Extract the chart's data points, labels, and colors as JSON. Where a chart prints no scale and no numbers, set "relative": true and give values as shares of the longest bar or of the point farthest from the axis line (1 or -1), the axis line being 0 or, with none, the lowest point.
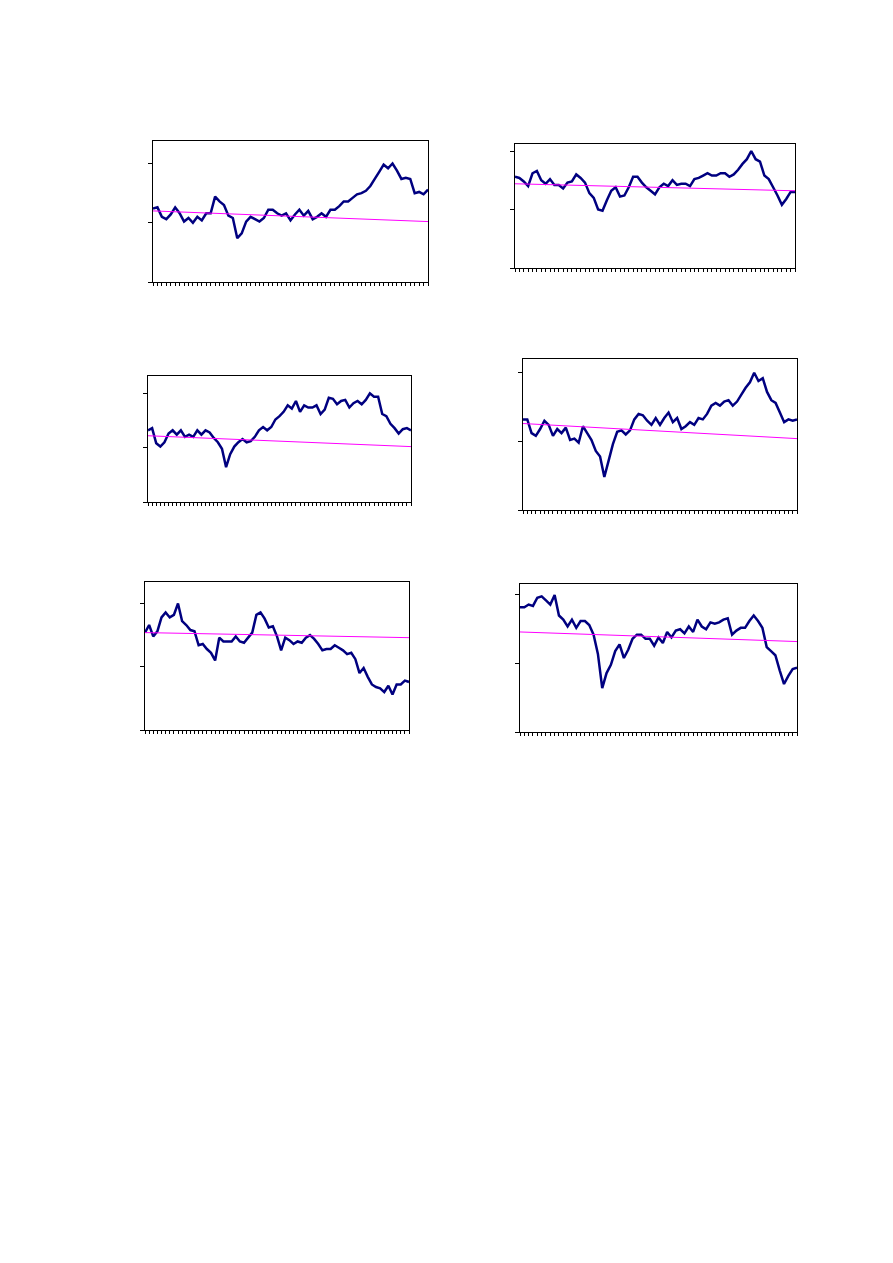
{
  "chart_data": [
    {
      "type": "line",
      "relative": true,
      "categories": [
        null,
        null,
        null,
        null,
        null,
        null,
        null,
        null,
        null,
        null,
        null,
        null,
        null,
        null,
        null,
        null,
        null,
        null,
        null,
        null,
        null,
        null,
        null,
        null,
        null,
        null,
        null,
        null,
        null,
        null,
        null,
        null,
        null,
        null,
        null,
        null,
        null,
        null,
        null,
        null,
        null,
        null,
        null,
        null,
        null,
        null,
        null,
        null,
        null,
        null,
        null,
        null,
        null,
        null,
        null,
        null,
        null,
        null,
        null,
        null,
        null,
        null,
        null
      ],
      "series": [
        {
          "color": "#000080",
          "values": [
            0.62,
            0.63,
            0.55,
            0.53,
            0.57,
            0.63,
            0.58,
            0.51,
            0.54,
            0.5,
            0.55,
            0.52,
            0.58,
            0.58,
            0.72,
            0.68,
            0.65,
            0.56,
            0.54,
            0.37,
            0.41,
            0.51,
            0.55,
            0.53,
            0.51,
            0.54,
            0.61,
            0.61,
            0.58,
            0.56,
            0.58,
            0.52,
            0.57,
            0.61,
            0.56,
            0.6,
            0.53,
            0.55,
            0.58,
            0.55,
            0.61,
            0.61,
            0.64,
            0.68,
            0.68,
            0.71,
            0.74,
            0.75,
            0.77,
            0.81,
            0.87,
            0.93,
            0.99,
            0.96,
            1.0,
            0.94,
            0.87,
            0.88,
            0.87,
            0.75,
            0.76,
            0.74,
            0.78
          ]
        },
        {
          "type": "line",
          "color": "#ff00ff",
          "values": [
            0.6,
            null,
            null,
            null,
            null,
            null,
            null,
            null,
            null,
            null,
            null,
            null,
            null,
            null,
            null,
            null,
            null,
            null,
            null,
            null,
            null,
            null,
            null,
            null,
            null,
            null,
            null,
            null,
            null,
            null,
            null,
            null,
            null,
            null,
            null,
            null,
            null,
            null,
            null,
            null,
            null,
            null,
            null,
            null,
            null,
            null,
            null,
            null,
            null,
            null,
            null,
            null,
            null,
            null,
            null,
            null,
            null,
            null,
            null,
            null,
            null,
            null,
            0.51
          ]
        }
      ]
    },
    {
      "type": "line",
      "relative": true,
      "categories": [
        null,
        null,
        null,
        null,
        null,
        null,
        null,
        null,
        null,
        null,
        null,
        null,
        null,
        null,
        null,
        null,
        null,
        null,
        null,
        null,
        null,
        null,
        null,
        null,
        null,
        null,
        null,
        null,
        null,
        null,
        null,
        null,
        null,
        null,
        null,
        null,
        null,
        null,
        null,
        null,
        null,
        null,
        null,
        null,
        null,
        null,
        null,
        null,
        null,
        null,
        null,
        null,
        null,
        null,
        null,
        null,
        null,
        null,
        null,
        null,
        null,
        null,
        null,
        null,
        null
      ],
      "series": [
        {
          "color": "#000080",
          "values": [
            0.78,
            0.77,
            0.74,
            0.7,
            0.81,
            0.83,
            0.75,
            0.72,
            0.76,
            0.71,
            0.71,
            0.68,
            0.73,
            0.74,
            0.8,
            0.77,
            0.73,
            0.64,
            0.6,
            0.5,
            0.49,
            0.58,
            0.66,
            0.69,
            0.61,
            0.62,
            0.69,
            0.78,
            0.78,
            0.73,
            0.69,
            0.66,
            0.63,
            0.69,
            0.72,
            0.7,
            0.75,
            0.71,
            0.72,
            0.72,
            0.7,
            0.76,
            0.77,
            0.79,
            0.81,
            0.79,
            0.79,
            0.81,
            0.81,
            0.78,
            0.8,
            0.84,
            0.89,
            0.93,
            1.0,
            0.93,
            0.91,
            0.79,
            0.76,
            0.69,
            0.62,
            0.54,
            0.59,
            0.65,
            0.65
          ]
        },
        {
          "type": "line",
          "color": "#ff00ff",
          "values": [
            0.72,
            null,
            null,
            null,
            null,
            null,
            null,
            null,
            null,
            null,
            null,
            null,
            null,
            null,
            null,
            null,
            null,
            null,
            null,
            null,
            null,
            null,
            null,
            null,
            null,
            null,
            null,
            null,
            null,
            null,
            null,
            null,
            null,
            null,
            null,
            null,
            null,
            null,
            null,
            null,
            null,
            null,
            null,
            null,
            null,
            null,
            null,
            null,
            null,
            null,
            null,
            null,
            null,
            null,
            null,
            null,
            null,
            null,
            null,
            null,
            null,
            null,
            null,
            null,
            0.66
          ]
        }
      ]
    },
    {
      "type": "line",
      "relative": true,
      "categories": [
        null,
        null,
        null,
        null,
        null,
        null,
        null,
        null,
        null,
        null,
        null,
        null,
        null,
        null,
        null,
        null,
        null,
        null,
        null,
        null,
        null,
        null,
        null,
        null,
        null,
        null,
        null,
        null,
        null,
        null,
        null,
        null,
        null,
        null,
        null,
        null,
        null,
        null,
        null,
        null,
        null,
        null,
        null,
        null,
        null,
        null,
        null,
        null,
        null,
        null,
        null,
        null,
        null,
        null,
        null,
        null,
        null,
        null,
        null,
        null,
        null,
        null,
        null,
        null,
        null
      ],
      "series": [
        {
          "color": "#000080",
          "values": [
            0.66,
            0.68,
            0.54,
            0.51,
            0.55,
            0.63,
            0.66,
            0.62,
            0.66,
            0.6,
            0.62,
            0.6,
            0.66,
            0.62,
            0.66,
            0.64,
            0.59,
            0.55,
            0.49,
            0.32,
            0.44,
            0.51,
            0.55,
            0.58,
            0.55,
            0.56,
            0.6,
            0.66,
            0.69,
            0.66,
            0.69,
            0.76,
            0.79,
            0.83,
            0.89,
            0.86,
            0.93,
            0.83,
            0.89,
            0.87,
            0.87,
            0.89,
            0.81,
            0.85,
            0.96,
            0.95,
            0.9,
            0.93,
            0.94,
            0.87,
            0.91,
            0.93,
            0.9,
            0.94,
            1.0,
            0.97,
            0.97,
            0.81,
            0.79,
            0.72,
            0.68,
            0.63,
            0.67,
            0.68,
            0.66
          ]
        },
        {
          "type": "line",
          "color": "#ff00ff",
          "values": [
            0.61,
            null,
            null,
            null,
            null,
            null,
            null,
            null,
            null,
            null,
            null,
            null,
            null,
            null,
            null,
            null,
            null,
            null,
            null,
            null,
            null,
            null,
            null,
            null,
            null,
            null,
            null,
            null,
            null,
            null,
            null,
            null,
            null,
            null,
            null,
            null,
            null,
            null,
            null,
            null,
            null,
            null,
            null,
            null,
            null,
            null,
            null,
            null,
            null,
            null,
            null,
            null,
            null,
            null,
            null,
            null,
            null,
            null,
            null,
            null,
            null,
            null,
            null,
            null,
            0.51
          ]
        }
      ]
    },
    {
      "type": "line",
      "relative": true,
      "categories": [
        null,
        null,
        null,
        null,
        null,
        null,
        null,
        null,
        null,
        null,
        null,
        null,
        null,
        null,
        null,
        null,
        null,
        null,
        null,
        null,
        null,
        null,
        null,
        null,
        null,
        null,
        null,
        null,
        null,
        null,
        null,
        null,
        null,
        null,
        null,
        null,
        null,
        null,
        null,
        null,
        null,
        null,
        null,
        null,
        null,
        null,
        null,
        null,
        null,
        null,
        null,
        null,
        null,
        null,
        null,
        null,
        null,
        null,
        null,
        null,
        null,
        null,
        null,
        null,
        null
      ],
      "series": [
        {
          "color": "#000080",
          "values": [
            0.66,
            0.66,
            0.56,
            0.54,
            0.59,
            0.65,
            0.62,
            0.54,
            0.59,
            0.56,
            0.6,
            0.51,
            0.52,
            0.49,
            0.61,
            0.56,
            0.51,
            0.43,
            0.39,
            0.24,
            0.36,
            0.48,
            0.57,
            0.58,
            0.55,
            0.58,
            0.66,
            0.7,
            0.69,
            0.65,
            0.62,
            0.67,
            0.62,
            0.67,
            0.71,
            0.64,
            0.67,
            0.59,
            0.61,
            0.64,
            0.62,
            0.67,
            0.66,
            0.7,
            0.76,
            0.78,
            0.76,
            0.79,
            0.8,
            0.76,
            0.79,
            0.84,
            0.89,
            0.93,
            1.0,
            0.94,
            0.96,
            0.86,
            0.8,
            0.78,
            0.71,
            0.64,
            0.66,
            0.65,
            0.66
          ]
        },
        {
          "type": "line",
          "color": "#ff00ff",
          "values": [
            0.63,
            null,
            null,
            null,
            null,
            null,
            null,
            null,
            null,
            null,
            null,
            null,
            null,
            null,
            null,
            null,
            null,
            null,
            null,
            null,
            null,
            null,
            null,
            null,
            null,
            null,
            null,
            null,
            null,
            null,
            null,
            null,
            null,
            null,
            null,
            null,
            null,
            null,
            null,
            null,
            null,
            null,
            null,
            null,
            null,
            null,
            null,
            null,
            null,
            null,
            null,
            null,
            null,
            null,
            null,
            null,
            null,
            null,
            null,
            null,
            null,
            null,
            null,
            null,
            0.52
          ]
        }
      ]
    },
    {
      "type": "line",
      "relative": true,
      "categories": [
        null,
        null,
        null,
        null,
        null,
        null,
        null,
        null,
        null,
        null,
        null,
        null,
        null,
        null,
        null,
        null,
        null,
        null,
        null,
        null,
        null,
        null,
        null,
        null,
        null,
        null,
        null,
        null,
        null,
        null,
        null,
        null,
        null,
        null,
        null,
        null,
        null,
        null,
        null,
        null,
        null,
        null,
        null,
        null,
        null,
        null,
        null,
        null,
        null,
        null,
        null,
        null,
        null,
        null,
        null,
        null,
        null,
        null,
        null,
        null,
        null,
        null,
        null,
        null,
        null
      ],
      "series": [
        {
          "color": "#000080",
          "values": [
            0.77,
            0.83,
            0.74,
            0.78,
            0.89,
            0.93,
            0.89,
            0.91,
            1.0,
            0.86,
            0.83,
            0.79,
            0.78,
            0.67,
            0.68,
            0.64,
            0.61,
            0.55,
            0.73,
            0.7,
            0.7,
            0.7,
            0.74,
            0.7,
            0.69,
            0.73,
            0.77,
            0.91,
            0.93,
            0.88,
            0.81,
            0.82,
            0.74,
            0.63,
            0.73,
            0.71,
            0.68,
            0.7,
            0.69,
            0.73,
            0.75,
            0.72,
            0.68,
            0.63,
            0.64,
            0.64,
            0.67,
            0.65,
            0.63,
            0.6,
            0.61,
            0.56,
            0.45,
            0.49,
            0.42,
            0.36,
            0.34,
            0.33,
            0.3,
            0.35,
            0.28,
            0.36,
            0.36,
            0.39,
            0.38
          ]
        },
        {
          "type": "line",
          "color": "#ff00ff",
          "values": [
            0.77,
            null,
            null,
            null,
            null,
            null,
            null,
            null,
            null,
            null,
            null,
            null,
            null,
            null,
            null,
            null,
            null,
            null,
            null,
            null,
            null,
            null,
            null,
            null,
            null,
            null,
            null,
            null,
            null,
            null,
            null,
            null,
            null,
            null,
            null,
            null,
            null,
            null,
            null,
            null,
            null,
            null,
            null,
            null,
            null,
            null,
            null,
            null,
            null,
            null,
            null,
            null,
            null,
            null,
            null,
            null,
            null,
            null,
            null,
            null,
            null,
            null,
            null,
            null,
            0.73
          ]
        }
      ]
    },
    {
      "type": "line",
      "relative": true,
      "categories": [
        null,
        null,
        null,
        null,
        null,
        null,
        null,
        null,
        null,
        null,
        null,
        null,
        null,
        null,
        null,
        null,
        null,
        null,
        null,
        null,
        null,
        null,
        null,
        null,
        null,
        null,
        null,
        null,
        null,
        null,
        null,
        null,
        null,
        null,
        null,
        null,
        null,
        null,
        null,
        null,
        null,
        null,
        null,
        null,
        null,
        null,
        null,
        null,
        null,
        null,
        null,
        null,
        null,
        null,
        null,
        null,
        null,
        null,
        null,
        null,
        null,
        null,
        null,
        null,
        null
      ],
      "series": [
        {
          "color": "#000080",
          "values": [
            0.91,
            0.91,
            0.93,
            0.92,
            0.98,
            0.99,
            0.96,
            0.93,
            1.0,
            0.85,
            0.82,
            0.77,
            0.82,
            0.76,
            0.81,
            0.81,
            0.78,
            0.71,
            0.57,
            0.32,
            0.43,
            0.49,
            0.59,
            0.64,
            0.54,
            0.6,
            0.68,
            0.71,
            0.71,
            0.68,
            0.68,
            0.63,
            0.69,
            0.65,
            0.73,
            0.69,
            0.74,
            0.75,
            0.72,
            0.77,
            0.73,
            0.82,
            0.77,
            0.75,
            0.8,
            0.79,
            0.8,
            0.82,
            0.83,
            0.71,
            0.74,
            0.76,
            0.76,
            0.81,
            0.85,
            0.81,
            0.76,
            0.62,
            0.59,
            0.56,
            0.45,
            0.35,
            0.41,
            0.46,
            0.47
          ]
        },
        {
          "type": "line",
          "color": "#ff00ff",
          "values": [
            0.73,
            null,
            null,
            null,
            null,
            null,
            null,
            null,
            null,
            null,
            null,
            null,
            null,
            null,
            null,
            null,
            null,
            null,
            null,
            null,
            null,
            null,
            null,
            null,
            null,
            null,
            null,
            null,
            null,
            null,
            null,
            null,
            null,
            null,
            null,
            null,
            null,
            null,
            null,
            null,
            null,
            null,
            null,
            null,
            null,
            null,
            null,
            null,
            null,
            null,
            null,
            null,
            null,
            null,
            null,
            null,
            null,
            null,
            null,
            null,
            null,
            null,
            null,
            null,
            0.66
          ]
        }
      ]
    }
  ]
}
